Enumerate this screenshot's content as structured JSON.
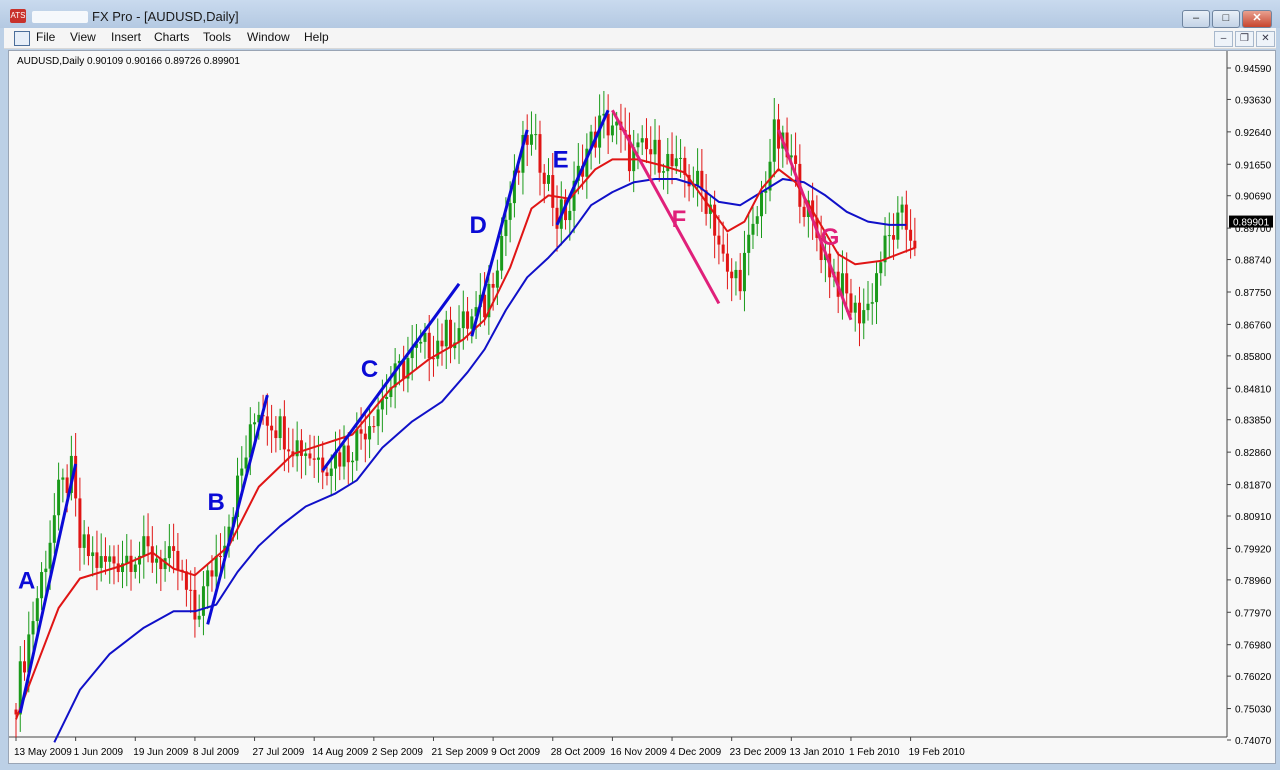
{
  "window": {
    "title": "FX Pro - [AUDUSD,Daily]",
    "app_icon_label": "ATS",
    "minimize": "–",
    "maximize": "□",
    "close": "✕",
    "mdi_minimize": "–",
    "mdi_restore": "❐",
    "mdi_close": "✕"
  },
  "menu": [
    "File",
    "View",
    "Insert",
    "Charts",
    "Tools",
    "Window",
    "Help"
  ],
  "colors": {
    "bull": "#1a9a1a",
    "bear": "#e01515",
    "wave_up": "#0b0bd6",
    "wave_down": "#e0207a",
    "ma_fast": "#e01515",
    "ma_slow": "#1010c8",
    "background": "#f8f8f8"
  },
  "chart_data": {
    "type": "candlestick",
    "symbol_header": "AUDUSD,Daily  0.90109 0.90166 0.89726 0.89901",
    "current_price": "0.89901",
    "ylim": [
      0.7407,
      0.9459
    ],
    "y_ticks": [
      "0.94590",
      "0.93630",
      "0.92640",
      "0.91650",
      "0.90690",
      "0.89700",
      "0.88740",
      "0.87750",
      "0.86760",
      "0.85800",
      "0.84810",
      "0.83850",
      "0.82860",
      "0.81870",
      "0.80910",
      "0.79920",
      "0.78960",
      "0.77970",
      "0.76980",
      "0.76020",
      "0.75030",
      "0.74070"
    ],
    "x_labels": [
      "13 May 2009",
      "1 Jun 2009",
      "19 Jun 2009",
      "8 Jul 2009",
      "27 Jul 2009",
      "14 Aug 2009",
      "2 Sep 2009",
      "21 Sep 2009",
      "9 Oct 2009",
      "28 Oct 2009",
      "16 Nov 2009",
      "4 Dec 2009",
      "23 Dec 2009",
      "13 Jan 2010",
      "1 Feb 2010",
      "19 Feb 2010"
    ],
    "bars_per_label": 14,
    "close_path": [
      [
        0,
        0.754
      ],
      [
        10,
        0.815
      ],
      [
        13,
        0.822
      ],
      [
        15,
        0.8
      ],
      [
        20,
        0.794
      ],
      [
        28,
        0.798
      ],
      [
        33,
        0.797
      ],
      [
        38,
        0.793
      ],
      [
        42,
        0.778
      ],
      [
        50,
        0.808
      ],
      [
        57,
        0.843
      ],
      [
        65,
        0.832
      ],
      [
        72,
        0.826
      ],
      [
        78,
        0.829
      ],
      [
        82,
        0.837
      ],
      [
        92,
        0.857
      ],
      [
        98,
        0.862
      ],
      [
        106,
        0.868
      ],
      [
        110,
        0.873
      ],
      [
        115,
        0.9
      ],
      [
        120,
        0.925
      ],
      [
        124,
        0.916
      ],
      [
        127,
        0.9
      ],
      [
        130,
        0.903
      ],
      [
        133,
        0.918
      ],
      [
        137,
        0.928
      ],
      [
        140,
        0.929
      ],
      [
        144,
        0.919
      ],
      [
        148,
        0.92
      ],
      [
        152,
        0.919
      ],
      [
        155,
        0.914
      ],
      [
        159,
        0.912
      ],
      [
        163,
        0.904
      ],
      [
        167,
        0.881
      ],
      [
        170,
        0.883
      ],
      [
        173,
        0.895
      ],
      [
        176,
        0.912
      ],
      [
        178,
        0.925
      ],
      [
        182,
        0.917
      ],
      [
        186,
        0.901
      ],
      [
        190,
        0.888
      ],
      [
        194,
        0.878
      ],
      [
        197,
        0.871
      ],
      [
        200,
        0.873
      ],
      [
        203,
        0.888
      ],
      [
        206,
        0.896
      ],
      [
        208,
        0.899
      ],
      [
        211,
        0.894
      ]
    ],
    "ma_fast": [
      [
        0,
        0.747
      ],
      [
        10,
        0.781
      ],
      [
        15,
        0.79
      ],
      [
        25,
        0.794
      ],
      [
        32,
        0.798
      ],
      [
        37,
        0.793
      ],
      [
        42,
        0.791
      ],
      [
        50,
        0.8
      ],
      [
        57,
        0.818
      ],
      [
        65,
        0.828
      ],
      [
        72,
        0.831
      ],
      [
        79,
        0.834
      ],
      [
        88,
        0.848
      ],
      [
        97,
        0.857
      ],
      [
        105,
        0.863
      ],
      [
        110,
        0.869
      ],
      [
        116,
        0.885
      ],
      [
        121,
        0.903
      ],
      [
        125,
        0.907
      ],
      [
        130,
        0.906
      ],
      [
        136,
        0.915
      ],
      [
        140,
        0.918
      ],
      [
        146,
        0.918
      ],
      [
        152,
        0.916
      ],
      [
        157,
        0.914
      ],
      [
        162,
        0.905
      ],
      [
        167,
        0.896
      ],
      [
        171,
        0.899
      ],
      [
        175,
        0.909
      ],
      [
        179,
        0.915
      ],
      [
        183,
        0.911
      ],
      [
        188,
        0.9
      ],
      [
        193,
        0.889
      ],
      [
        197,
        0.886
      ],
      [
        203,
        0.887
      ],
      [
        207,
        0.889
      ],
      [
        211,
        0.891
      ]
    ],
    "ma_slow": [
      [
        9,
        0.74
      ],
      [
        15,
        0.756
      ],
      [
        22,
        0.767
      ],
      [
        30,
        0.775
      ],
      [
        37,
        0.78
      ],
      [
        42,
        0.78
      ],
      [
        47,
        0.782
      ],
      [
        52,
        0.792
      ],
      [
        57,
        0.8
      ],
      [
        62,
        0.806
      ],
      [
        68,
        0.812
      ],
      [
        75,
        0.816
      ],
      [
        80,
        0.82
      ],
      [
        86,
        0.83
      ],
      [
        93,
        0.838
      ],
      [
        100,
        0.844
      ],
      [
        106,
        0.853
      ],
      [
        110,
        0.86
      ],
      [
        115,
        0.872
      ],
      [
        120,
        0.882
      ],
      [
        125,
        0.888
      ],
      [
        130,
        0.895
      ],
      [
        135,
        0.904
      ],
      [
        140,
        0.908
      ],
      [
        145,
        0.911
      ],
      [
        150,
        0.912
      ],
      [
        155,
        0.912
      ],
      [
        160,
        0.91
      ],
      [
        165,
        0.905
      ],
      [
        170,
        0.904
      ],
      [
        175,
        0.908
      ],
      [
        180,
        0.912
      ],
      [
        185,
        0.911
      ],
      [
        190,
        0.907
      ],
      [
        195,
        0.902
      ],
      [
        200,
        0.899
      ],
      [
        205,
        0.898
      ],
      [
        209,
        0.898
      ]
    ],
    "waves": [
      {
        "label": "A",
        "from": [
          1,
          0.749
        ],
        "to": [
          14,
          0.825
        ],
        "dir": "up"
      },
      {
        "label": "B",
        "from": [
          45,
          0.776
        ],
        "to": [
          59,
          0.846
        ],
        "dir": "up"
      },
      {
        "label": "C",
        "from": [
          72,
          0.823
        ],
        "to": [
          104,
          0.88
        ],
        "dir": "up"
      },
      {
        "label": "D",
        "from": [
          107,
          0.864
        ],
        "to": [
          120,
          0.927
        ],
        "dir": "up"
      },
      {
        "label": "E",
        "from": [
          127,
          0.898
        ],
        "to": [
          139,
          0.933
        ],
        "dir": "up"
      },
      {
        "label": "F",
        "from": [
          140,
          0.933
        ],
        "to": [
          165,
          0.874
        ],
        "dir": "down"
      },
      {
        "label": "G",
        "from": [
          179,
          0.927
        ],
        "to": [
          196,
          0.869
        ],
        "dir": "down"
      }
    ]
  }
}
